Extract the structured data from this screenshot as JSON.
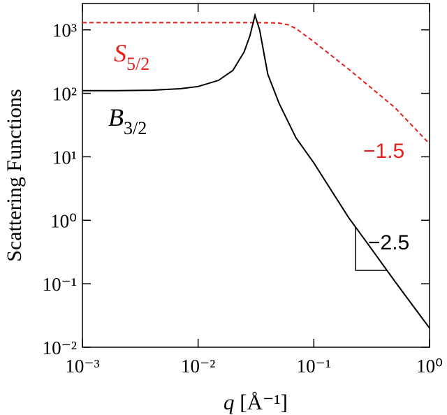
{
  "chart_data": {
    "type": "line",
    "y_label": "Scattering Functions",
    "x_label": "q",
    "x_label_unit": "[Å⁻¹]",
    "log_x": true,
    "log_y": true,
    "xlim": [
      0.001,
      1
    ],
    "ylim": [
      0.01,
      2600
    ],
    "xticks": [
      {
        "value": 0.001,
        "label": "10⁻³"
      },
      {
        "value": 0.01,
        "label": "10⁻²"
      },
      {
        "value": 0.1,
        "label": "10⁻¹"
      },
      {
        "value": 1,
        "label": "10⁰"
      }
    ],
    "yticks": [
      {
        "value": 0.01,
        "label": "10⁻²"
      },
      {
        "value": 0.1,
        "label": "10⁻¹"
      },
      {
        "value": 1,
        "label": "10⁰"
      },
      {
        "value": 10,
        "label": "10¹"
      },
      {
        "value": 100,
        "label": "10²"
      },
      {
        "value": 1000,
        "label": "10³"
      }
    ],
    "series": [
      {
        "name": "S",
        "name_sub": "5/2",
        "color": "#e8201c",
        "dash": true,
        "x": [
          0.001,
          0.01,
          0.03,
          0.05,
          0.06,
          0.07,
          0.1,
          0.2,
          0.5,
          1
        ],
        "values": [
          1300,
          1300,
          1300,
          1280,
          1200,
          1050,
          650,
          240,
          60,
          16
        ]
      },
      {
        "name": "B",
        "name_sub": "3/2",
        "color": "#000000",
        "dash": false,
        "x": [
          0.001,
          0.002,
          0.004,
          0.007,
          0.01,
          0.015,
          0.02,
          0.025,
          0.028,
          0.031,
          0.034,
          0.04,
          0.05,
          0.07,
          0.1,
          0.2,
          0.3,
          0.5,
          0.7,
          1
        ],
        "values": [
          110,
          110,
          112,
          118,
          128,
          160,
          230,
          450,
          800,
          1700,
          1000,
          200,
          70,
          20,
          8,
          1.1,
          0.4,
          0.11,
          0.048,
          0.02
        ]
      }
    ],
    "annotations": [
      {
        "text": "−1.5",
        "color": "#e8201c"
      },
      {
        "text": "−2.5",
        "color": "#000000"
      }
    ]
  }
}
